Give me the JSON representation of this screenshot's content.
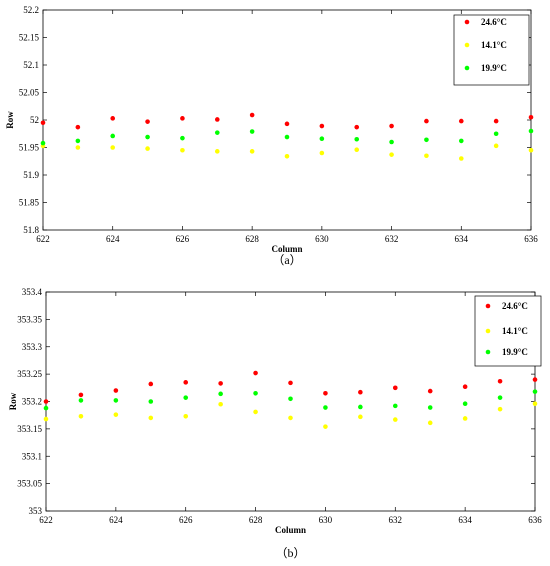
{
  "chart_data": [
    {
      "type": "scatter",
      "caption": "（a）",
      "xlabel": "Column",
      "ylabel": "Row",
      "xlim": [
        622,
        636
      ],
      "ylim": [
        51.8,
        52.2
      ],
      "xticks": [
        "622",
        "624",
        "626",
        "628",
        "630",
        "632",
        "634",
        "636"
      ],
      "yticks": [
        "51.8",
        "51.85",
        "51.9",
        "51.95",
        "52",
        "52.05",
        "52.1",
        "52.15",
        "52.2"
      ],
      "grid": false,
      "legend": "top-right",
      "x": [
        622,
        623,
        624,
        625,
        626,
        627,
        628,
        629,
        630,
        631,
        632,
        633,
        634,
        635,
        636
      ],
      "series": [
        {
          "name": "24.6°C",
          "color": "#ff0000",
          "values": [
            51.995,
            51.987,
            52.003,
            51.997,
            52.003,
            52.001,
            52.009,
            51.993,
            51.989,
            51.987,
            51.989,
            51.998,
            51.998,
            51.998,
            52.005
          ]
        },
        {
          "name": "14.1°C",
          "color": "#ffff00",
          "values": [
            51.953,
            51.95,
            51.95,
            51.948,
            51.945,
            51.943,
            51.943,
            51.934,
            51.94,
            51.946,
            51.937,
            51.935,
            51.93,
            51.953,
            51.945
          ]
        },
        {
          "name": "19.9°C",
          "color": "#00ff00",
          "values": [
            51.958,
            51.962,
            51.971,
            51.969,
            51.967,
            51.977,
            51.979,
            51.969,
            51.966,
            51.965,
            51.96,
            51.964,
            51.962,
            51.975,
            51.98
          ]
        }
      ]
    },
    {
      "type": "scatter",
      "caption": "（b）",
      "xlabel": "Column",
      "ylabel": "Row",
      "xlim": [
        622,
        636
      ],
      "ylim": [
        353,
        353.4
      ],
      "xticks": [
        "622",
        "624",
        "626",
        "628",
        "630",
        "632",
        "634",
        "636"
      ],
      "yticks": [
        "353",
        "353.05",
        "353.1",
        "353.15",
        "353.2",
        "353.25",
        "353.3",
        "353.35",
        "353.4"
      ],
      "grid": false,
      "legend": "top-right",
      "x": [
        622,
        623,
        624,
        625,
        626,
        627,
        628,
        629,
        630,
        631,
        632,
        633,
        634,
        635,
        636
      ],
      "series": [
        {
          "name": "24.6°C",
          "color": "#ff0000",
          "values": [
            353.2,
            353.212,
            353.22,
            353.232,
            353.235,
            353.233,
            353.252,
            353.234,
            353.215,
            353.217,
            353.225,
            353.219,
            353.227,
            353.237,
            353.24
          ]
        },
        {
          "name": "14.1°C",
          "color": "#ffff00",
          "values": [
            353.168,
            353.173,
            353.176,
            353.17,
            353.173,
            353.195,
            353.181,
            353.17,
            353.154,
            353.172,
            353.167,
            353.161,
            353.169,
            353.186,
            353.196
          ]
        },
        {
          "name": "19.9°C",
          "color": "#00ff00",
          "values": [
            353.188,
            353.202,
            353.202,
            353.2,
            353.207,
            353.214,
            353.215,
            353.205,
            353.189,
            353.19,
            353.192,
            353.189,
            353.196,
            353.207,
            353.218
          ]
        }
      ]
    }
  ]
}
